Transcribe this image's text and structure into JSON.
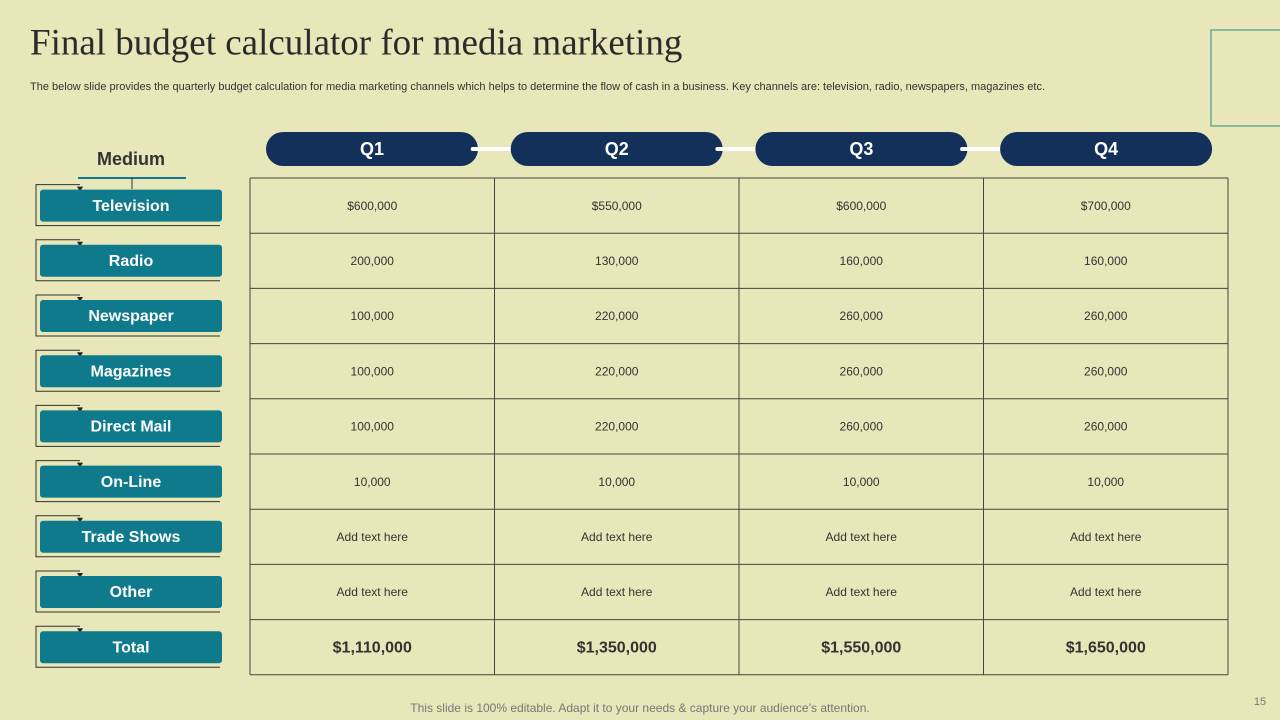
{
  "header": {
    "title": "Final budget calculator for media marketing",
    "subtitle": "The below slide provides the quarterly budget calculation for media marketing channels which helps to determine the flow of cash in a business. Key channels are: television, radio, newspapers, magazines etc."
  },
  "table": {
    "medium_label": "Medium",
    "columns": [
      "Q1",
      "Q2",
      "Q3",
      "Q4"
    ],
    "rows": [
      {
        "label": "Television",
        "cells": [
          "$600,000",
          "$550,000",
          "$600,000",
          "$700,000"
        ]
      },
      {
        "label": "Radio",
        "cells": [
          "200,000",
          "130,000",
          "160,000",
          "160,000"
        ]
      },
      {
        "label": "Newspaper",
        "cells": [
          "100,000",
          "220,000",
          "260,000",
          "260,000"
        ]
      },
      {
        "label": "Magazines",
        "cells": [
          "100,000",
          "220,000",
          "260,000",
          "260,000"
        ]
      },
      {
        "label": "Direct Mail",
        "cells": [
          "100,000",
          "220,000",
          "260,000",
          "260,000"
        ]
      },
      {
        "label": "On-Line",
        "cells": [
          "10,000",
          "10,000",
          "10,000",
          "10,000"
        ]
      },
      {
        "label": "Trade Shows",
        "cells": [
          "Add text here",
          "Add text here",
          "Add text here",
          "Add text here"
        ]
      },
      {
        "label": "Other",
        "cells": [
          "Add text here",
          "Add text here",
          "Add text here",
          "Add text here"
        ]
      },
      {
        "label": "Total",
        "cells": [
          "$1,110,000",
          "$1,350,000",
          "$1,550,000",
          "$1,650,000"
        ]
      }
    ]
  },
  "footer": "This slide is 100% editable. Adapt it to your needs & capture your audience’s attention.",
  "page_number": "15"
}
